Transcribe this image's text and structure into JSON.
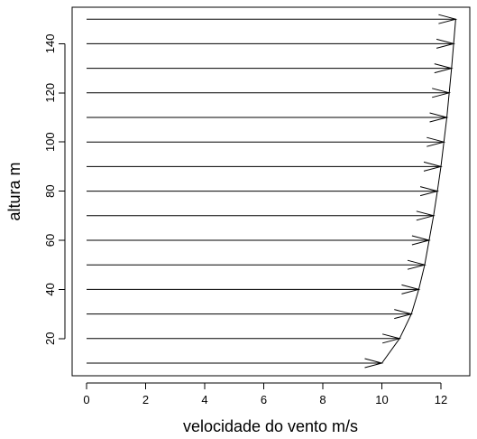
{
  "chart_data": {
    "type": "line",
    "xlabel": "velocidade do vento m/s",
    "ylabel": "altura m",
    "xlim": [
      0,
      12.5
    ],
    "ylim": [
      10,
      150
    ],
    "x_ticks": [
      0,
      2,
      4,
      6,
      8,
      10,
      12
    ],
    "y_ticks": [
      20,
      40,
      60,
      80,
      100,
      120,
      140
    ],
    "grid": false,
    "series": [
      {
        "style": "arrows from x=0 to wind speed at each height",
        "points": [
          {
            "z": 10,
            "v": 10.0
          },
          {
            "z": 20,
            "v": 10.6
          },
          {
            "z": 30,
            "v": 11.0
          },
          {
            "z": 40,
            "v": 11.25
          },
          {
            "z": 50,
            "v": 11.45
          },
          {
            "z": 60,
            "v": 11.6
          },
          {
            "z": 70,
            "v": 11.75
          },
          {
            "z": 80,
            "v": 11.88
          },
          {
            "z": 90,
            "v": 12.0
          },
          {
            "z": 100,
            "v": 12.1
          },
          {
            "z": 110,
            "v": 12.2
          },
          {
            "z": 120,
            "v": 12.28
          },
          {
            "z": 130,
            "v": 12.36
          },
          {
            "z": 140,
            "v": 12.43
          },
          {
            "z": 150,
            "v": 12.5
          }
        ]
      }
    ]
  }
}
